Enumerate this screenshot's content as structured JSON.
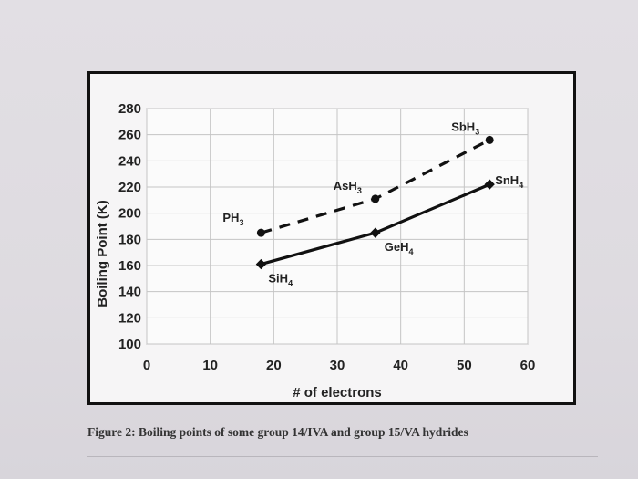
{
  "caption": "Figure 2: Boiling points of some group 14/IVA and group 15/VA hydrides",
  "chart_data": {
    "type": "line",
    "xlabel": "# of electrons",
    "ylabel": "Boiling Point (K)",
    "xlim": [
      0,
      60
    ],
    "ylim": [
      100,
      280
    ],
    "xticks": [
      0,
      10,
      20,
      30,
      40,
      50,
      60
    ],
    "yticks": [
      100,
      120,
      140,
      160,
      180,
      200,
      220,
      240,
      260,
      280
    ],
    "grid": true,
    "series": [
      {
        "style": "solid",
        "color": "#111111",
        "points": [
          {
            "x": 18,
            "y": 161,
            "base": "SiH",
            "sub": "4"
          },
          {
            "x": 36,
            "y": 185,
            "base": "GeH",
            "sub": "4"
          },
          {
            "x": 54,
            "y": 222,
            "base": "SnH",
            "sub": "4"
          }
        ]
      },
      {
        "style": "dashed",
        "color": "#111111",
        "points": [
          {
            "x": 18,
            "y": 185,
            "base": "PH",
            "sub": "3"
          },
          {
            "x": 36,
            "y": 211,
            "base": "AsH",
            "sub": "3"
          },
          {
            "x": 54,
            "y": 256,
            "base": "SbH",
            "sub": "3"
          }
        ]
      }
    ]
  }
}
